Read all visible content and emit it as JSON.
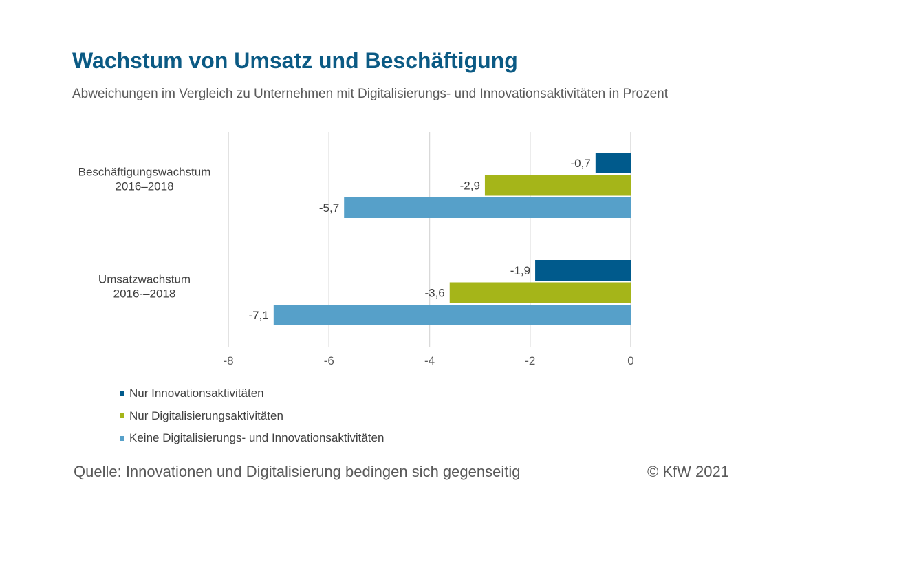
{
  "header": {
    "title": "Wachstum von Umsatz und Beschäftigung",
    "subtitle": "Abweichungen im Vergleich zu Unternehmen mit Digitalisierungs- und Innovationsaktivitäten in Prozent"
  },
  "footer": {
    "source": "Quelle: Innovationen und Digitalisierung bedingen sich gegenseitig",
    "copyright": "© KfW 2021"
  },
  "chart_data": {
    "type": "bar",
    "orientation": "horizontal",
    "categories": [
      [
        "Beschäftigungswachstum",
        "2016–2018"
      ],
      [
        "Umsatzwachstum",
        "2016-–2018"
      ]
    ],
    "series": [
      {
        "name": "Nur Innovationsaktivitäten",
        "color": "#005a8c",
        "values": [
          -0.7,
          -1.9
        ],
        "labels": [
          "-0,7",
          "-1,9"
        ]
      },
      {
        "name": "Nur Digitalisierungsaktivitäten",
        "color": "#a5b519",
        "values": [
          -2.9,
          -3.6
        ],
        "labels": [
          "-2,9",
          "-3,6"
        ]
      },
      {
        "name": "Keine Digitalisierungs- und Innovationsaktivitäten",
        "color": "#56a0c9",
        "values": [
          -5.7,
          -7.1
        ],
        "labels": [
          "-5,7",
          "-7,1"
        ]
      }
    ],
    "xlim": [
      -8,
      0
    ],
    "xticks": [
      -8,
      -6,
      -4,
      -2,
      0
    ],
    "xtick_labels": [
      "-8",
      "-6",
      "-4",
      "-2",
      "0"
    ],
    "grid": true,
    "legend_position": "bottom-left"
  }
}
